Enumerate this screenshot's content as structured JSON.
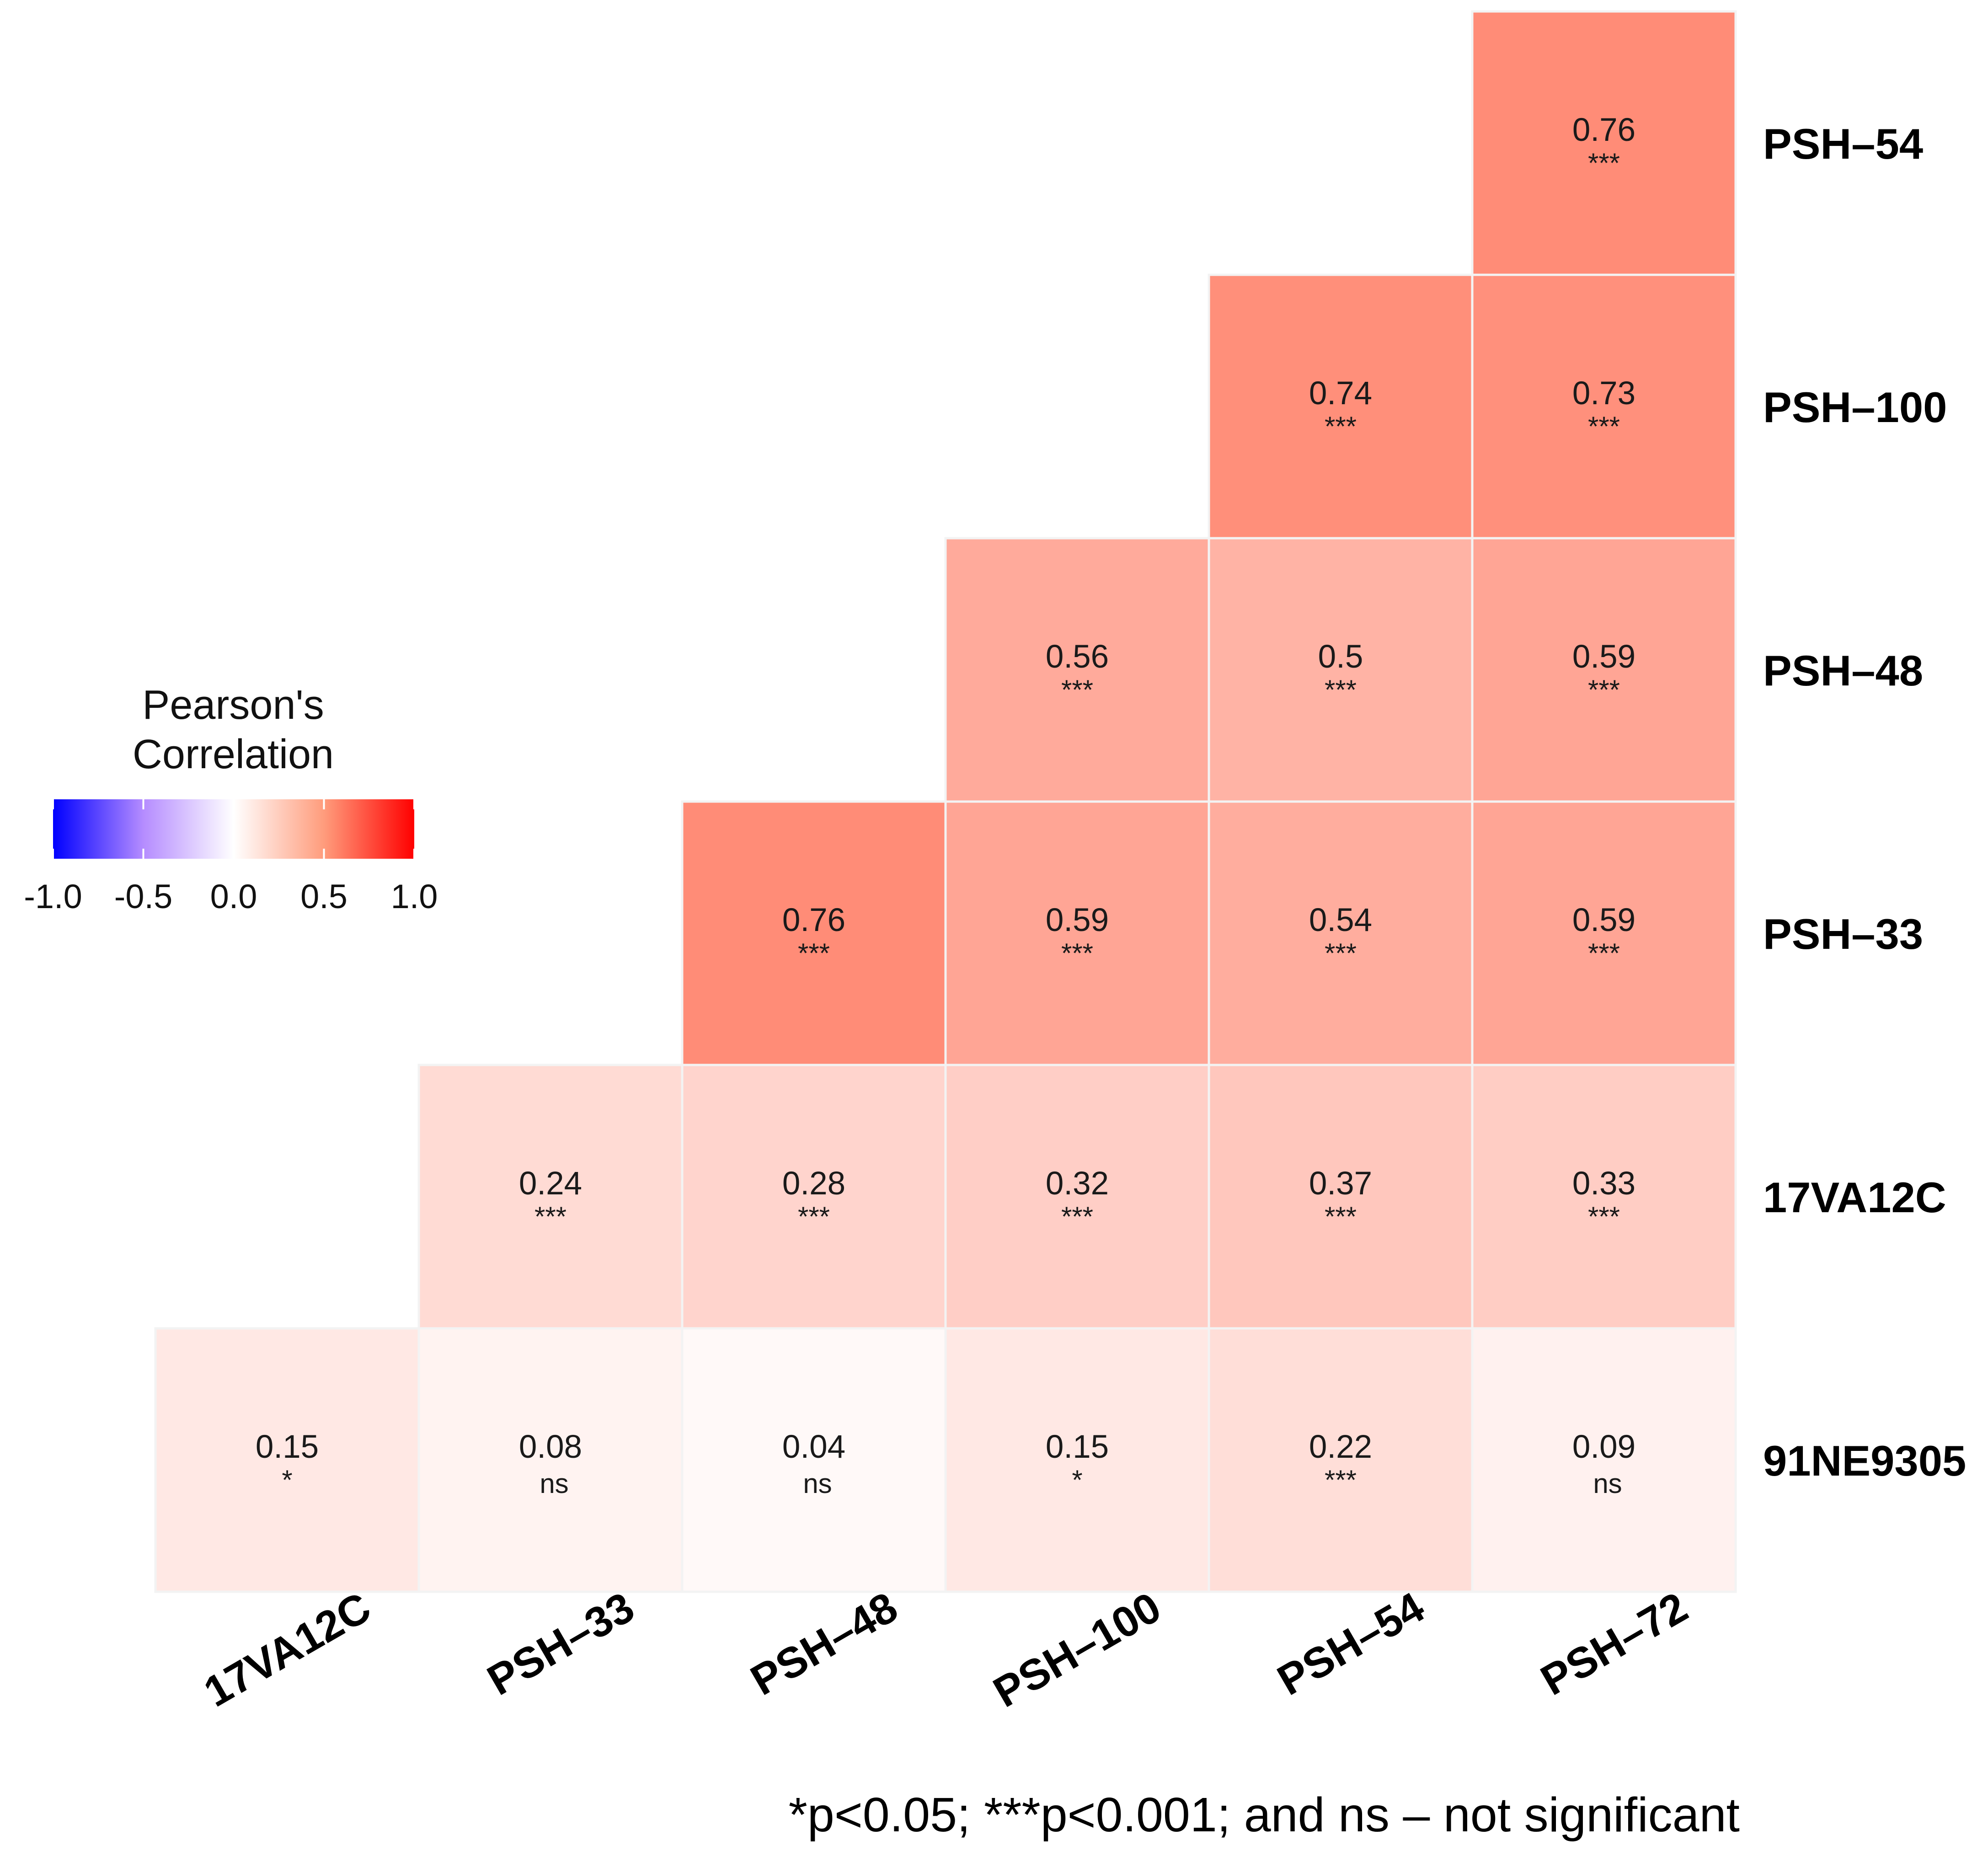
{
  "chart_data": {
    "type": "heatmap",
    "title": "",
    "row_labels": [
      "PSH–54",
      "PSH–100",
      "PSH–48",
      "PSH–33",
      "17VA12C",
      "91NE9305"
    ],
    "col_labels": [
      "17VA12C",
      "PSH–33",
      "PSH–48",
      "PSH–100",
      "PSH–54",
      "PSH–72"
    ],
    "cells": [
      {
        "row": 0,
        "col": 5,
        "value": 0.76,
        "label": "0.76",
        "sig": "***"
      },
      {
        "row": 1,
        "col": 4,
        "value": 0.74,
        "label": "0.74",
        "sig": "***"
      },
      {
        "row": 1,
        "col": 5,
        "value": 0.73,
        "label": "0.73",
        "sig": "***"
      },
      {
        "row": 2,
        "col": 3,
        "value": 0.56,
        "label": "0.56",
        "sig": "***"
      },
      {
        "row": 2,
        "col": 4,
        "value": 0.5,
        "label": "0.5",
        "sig": "***"
      },
      {
        "row": 2,
        "col": 5,
        "value": 0.59,
        "label": "0.59",
        "sig": "***"
      },
      {
        "row": 3,
        "col": 2,
        "value": 0.76,
        "label": "0.76",
        "sig": "***"
      },
      {
        "row": 3,
        "col": 3,
        "value": 0.59,
        "label": "0.59",
        "sig": "***"
      },
      {
        "row": 3,
        "col": 4,
        "value": 0.54,
        "label": "0.54",
        "sig": "***"
      },
      {
        "row": 3,
        "col": 5,
        "value": 0.59,
        "label": "0.59",
        "sig": "***"
      },
      {
        "row": 4,
        "col": 1,
        "value": 0.24,
        "label": "0.24",
        "sig": "***"
      },
      {
        "row": 4,
        "col": 2,
        "value": 0.28,
        "label": "0.28",
        "sig": "***"
      },
      {
        "row": 4,
        "col": 3,
        "value": 0.32,
        "label": "0.32",
        "sig": "***"
      },
      {
        "row": 4,
        "col": 4,
        "value": 0.37,
        "label": "0.37",
        "sig": "***"
      },
      {
        "row": 4,
        "col": 5,
        "value": 0.33,
        "label": "0.33",
        "sig": "***"
      },
      {
        "row": 5,
        "col": 0,
        "value": 0.15,
        "label": "0.15",
        "sig": "*"
      },
      {
        "row": 5,
        "col": 1,
        "value": 0.08,
        "label": "0.08",
        "sig": "ns"
      },
      {
        "row": 5,
        "col": 2,
        "value": 0.04,
        "label": "0.04",
        "sig": "ns"
      },
      {
        "row": 5,
        "col": 3,
        "value": 0.15,
        "label": "0.15",
        "sig": "*"
      },
      {
        "row": 5,
        "col": 4,
        "value": 0.22,
        "label": "0.22",
        "sig": "***"
      },
      {
        "row": 5,
        "col": 5,
        "value": 0.09,
        "label": "0.09",
        "sig": "ns"
      }
    ],
    "legend": {
      "title_line1": "Pearson's",
      "title_line2": "Correlation",
      "range": [
        -1.0,
        1.0
      ],
      "ticks": [
        -1.0,
        -0.5,
        0.0,
        0.5,
        1.0
      ],
      "tick_labels": [
        "-1.0",
        "-0.5",
        "0.0",
        "0.5",
        "1.0"
      ],
      "colors": {
        "low": "#0000ff",
        "mid": "#ffffff",
        "high": "#ff0000"
      },
      "placement": "left"
    },
    "footnote": "*p<0.05; ***p<0.001; and ns – not significant"
  }
}
